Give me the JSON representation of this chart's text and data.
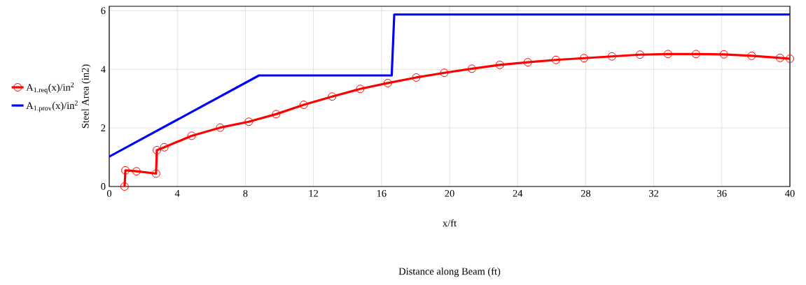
{
  "chart_data": {
    "type": "line",
    "xlabel": "x/ft",
    "ylabel": "Steel Area (in2)",
    "annotations": [
      "Distance along Beam (ft)"
    ],
    "xlim": [
      0,
      40
    ],
    "ylim": [
      0,
      6.15
    ],
    "xticks": [
      0,
      4,
      8,
      12,
      16,
      20,
      24,
      28,
      32,
      36,
      40
    ],
    "yticks": [
      0,
      2,
      4,
      6
    ],
    "grid": true,
    "legend": "left",
    "series": [
      {
        "name": "A$_{1.req}$(x)/in$^{2}$",
        "color": "#ff0000",
        "marker": "circle",
        "x": [
          0.9,
          0.95,
          1.6,
          2.75,
          2.8,
          3.24,
          4.84,
          6.52,
          8.2,
          9.81,
          11.43,
          13.1,
          14.75,
          16.37,
          18.04,
          19.69,
          21.31,
          22.95,
          24.6,
          26.25,
          27.9,
          29.54,
          31.19,
          32.83,
          34.48,
          36.12,
          37.75,
          39.42,
          40
        ],
        "values": [
          0,
          0.55,
          0.52,
          0.44,
          1.24,
          1.34,
          1.73,
          2.01,
          2.21,
          2.47,
          2.79,
          3.07,
          3.33,
          3.53,
          3.72,
          3.88,
          4.02,
          4.15,
          4.24,
          4.32,
          4.38,
          4.44,
          4.5,
          4.52,
          4.52,
          4.51,
          4.46,
          4.39,
          4.36
        ]
      },
      {
        "name": "A$_{1.prov}$(x)/in$^{2}$",
        "color": "#0000ff",
        "marker": "none",
        "x": [
          0,
          8.8,
          16.6,
          16.75,
          40
        ],
        "values": [
          1.02,
          3.79,
          3.79,
          5.87,
          5.87
        ]
      }
    ]
  }
}
